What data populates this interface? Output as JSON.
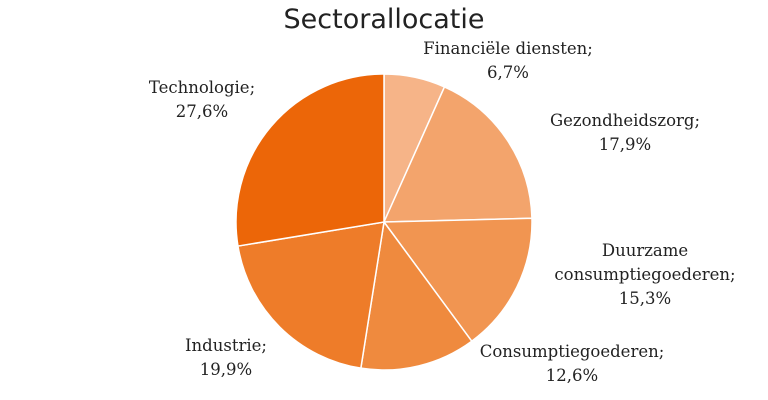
{
  "chart_data": {
    "type": "pie",
    "title": "Sectorallocatie",
    "categories": [
      "Financiële diensten;",
      "Gezondheidszorg;",
      "Duurzame consumptiegoederen;",
      "Consumptiegoederen;",
      "Industrie;",
      "Technologie;"
    ],
    "values": [
      6.7,
      17.9,
      15.3,
      12.6,
      19.9,
      27.6
    ],
    "value_labels": [
      "6,7%",
      "17,9%",
      "15,3%",
      "12,6%",
      "19,9%",
      "27,6%"
    ],
    "colors": [
      "#f6b488",
      "#f3a46c",
      "#f19551",
      "#ef8a3e",
      "#ee7c29",
      "#ec6608"
    ]
  }
}
